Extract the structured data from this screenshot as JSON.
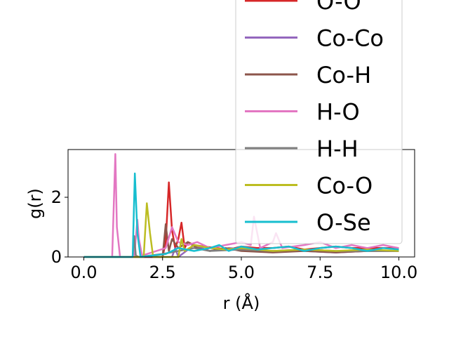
{
  "chart_data": {
    "type": "line",
    "xlabel": "r (Å)",
    "ylabel": "g(r)",
    "xlim": [
      -0.5,
      10.5
    ],
    "ylim": [
      0,
      3.6
    ],
    "x_ticks": [
      "0.0",
      "2.5",
      "5.0",
      "7.5",
      "10.0"
    ],
    "x_tick_values": [
      0,
      2.5,
      5,
      7.5,
      10
    ],
    "y_ticks": [
      "0",
      "2"
    ],
    "y_tick_values": [
      0,
      2
    ],
    "grid": false,
    "legend_position": "upper-right, extends above plot",
    "series": [
      {
        "name": "O-O",
        "color": "#d62728",
        "x": [
          0,
          2.5,
          2.6,
          2.7,
          2.8,
          2.9,
          3.0,
          3.1,
          3.2,
          3.3,
          3.5,
          3.8,
          4.2,
          4.6,
          5.0,
          5.5,
          6.0,
          6.5,
          7.0,
          7.5,
          8.0,
          8.5,
          9.0,
          9.5,
          10.0
        ],
        "y": [
          0,
          0,
          0.5,
          2.5,
          0.9,
          0.3,
          0.6,
          1.15,
          0.3,
          0.5,
          0.4,
          0.35,
          0.3,
          0.25,
          0.35,
          0.3,
          0.3,
          0.35,
          0.25,
          0.3,
          0.35,
          0.3,
          0.3,
          0.3,
          0.3
        ]
      },
      {
        "name": "Co-Co",
        "color": "#9467bd",
        "x": [
          0,
          2.8,
          2.9,
          3.0,
          3.5,
          4.0,
          4.6,
          5.2,
          6.0,
          7.0,
          8.0,
          9.0,
          10.0
        ],
        "y": [
          0,
          0,
          0.3,
          0,
          0.4,
          0.2,
          0.3,
          0.25,
          0.2,
          0.2,
          0.15,
          0.2,
          0.2
        ]
      },
      {
        "name": "Co-H",
        "color": "#8c564b",
        "x": [
          0,
          2.5,
          2.6,
          2.7,
          2.8,
          3.0,
          3.3,
          3.6,
          4.0,
          4.5,
          5.0,
          6.0,
          7.0,
          8.0,
          9.0,
          10.0
        ],
        "y": [
          0,
          0,
          1.1,
          0.2,
          0.6,
          0.3,
          0.5,
          0.3,
          0.2,
          0.3,
          0.2,
          0.15,
          0.2,
          0.15,
          0.2,
          0.2
        ]
      },
      {
        "name": "H-O",
        "color": "#e377c2",
        "x": [
          0,
          0.9,
          1.0,
          1.05,
          1.15,
          1.6,
          1.7,
          1.75,
          1.85,
          2.6,
          2.8,
          3.0,
          3.3,
          3.6,
          4.0,
          4.5,
          5.0,
          5.3,
          5.4,
          5.6,
          6.0,
          6.1,
          6.3,
          7.0,
          7.5,
          8.0,
          8.5,
          9.0,
          9.5,
          10.0
        ],
        "y": [
          0,
          0,
          3.45,
          1.0,
          0,
          0,
          1.25,
          0.6,
          0.05,
          0.3,
          1.0,
          0.5,
          0.4,
          0.5,
          0.3,
          0.4,
          0.5,
          0.4,
          1.35,
          0.3,
          0.5,
          0.8,
          0.3,
          0.4,
          0.5,
          0.3,
          0.4,
          0.3,
          0.4,
          0.3
        ]
      },
      {
        "name": "H-H",
        "color": "#7f7f7f",
        "x": [
          0,
          1.55,
          1.6,
          1.65,
          1.75,
          2.5,
          3.0,
          3.5,
          4.0,
          5.0,
          6.0,
          7.0,
          8.0,
          9.0,
          10.0
        ],
        "y": [
          0,
          0,
          0.7,
          0.05,
          0,
          0.1,
          0.2,
          0.3,
          0.2,
          0.25,
          0.2,
          0.25,
          0.2,
          0.2,
          0.2
        ]
      },
      {
        "name": "Co-O",
        "color": "#bcbd22",
        "x": [
          0,
          1.9,
          2.0,
          2.1,
          2.2,
          3.0,
          3.1,
          3.2,
          3.5,
          4.0,
          4.5,
          5.0,
          6.0,
          7.0,
          8.0,
          9.0,
          10.0
        ],
        "y": [
          0,
          0,
          1.8,
          0.8,
          0,
          0,
          0.6,
          0.2,
          0.4,
          0.3,
          0.25,
          0.3,
          0.2,
          0.25,
          0.2,
          0.25,
          0.2
        ]
      },
      {
        "name": "O-Se",
        "color": "#17becf",
        "x": [
          0,
          1.55,
          1.62,
          1.7,
          1.8,
          2.6,
          3.0,
          3.5,
          4.0,
          4.3,
          4.6,
          5.0,
          5.5,
          6.0,
          6.5,
          7.0,
          7.5,
          8.0,
          8.5,
          9.0,
          9.5,
          10.0
        ],
        "y": [
          0,
          0,
          2.8,
          0.8,
          0,
          0.1,
          0.3,
          0.2,
          0.3,
          0.4,
          0.2,
          0.35,
          0.25,
          0.3,
          0.35,
          0.2,
          0.3,
          0.35,
          0.3,
          0.2,
          0.3,
          0.25
        ]
      }
    ]
  }
}
